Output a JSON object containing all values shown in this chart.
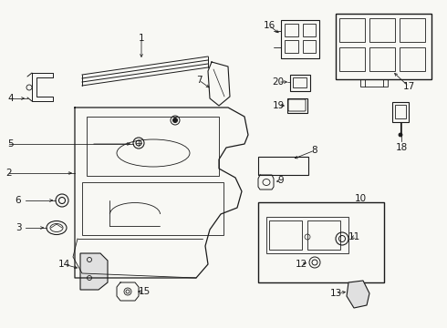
{
  "bg_color": "#f8f8f4",
  "line_color": "#1a1a1a",
  "fig_width": 4.9,
  "fig_height": 3.6,
  "dpi": 100,
  "label_fs": 7.5,
  "lw_main": 0.9,
  "lw_detail": 0.6,
  "lw_leader": 0.55
}
